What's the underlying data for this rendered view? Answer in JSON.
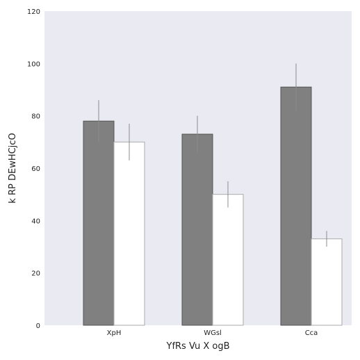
{
  "chart_data": {
    "type": "bar",
    "title": "",
    "xlabel": "YfRs  Vu X ogB",
    "ylabel": "k RP DEwHCjcO",
    "categories": [
      "XpH",
      "WGsl",
      "Cca"
    ],
    "ylim": [
      0,
      120
    ],
    "yticks": [
      0,
      20,
      40,
      60,
      80,
      100,
      120
    ],
    "grid": false,
    "legend": "none",
    "background_color": "#eaeaf2",
    "series": [
      {
        "values": [
          78,
          73,
          91
        ],
        "errors": [
          8,
          7,
          9
        ],
        "color": "#808080",
        "edge_color": "#555555"
      },
      {
        "values": [
          70,
          50,
          33
        ],
        "errors": [
          7,
          5,
          3
        ],
        "color": "#ffffff",
        "edge_color": "#aaaaaa"
      }
    ]
  }
}
